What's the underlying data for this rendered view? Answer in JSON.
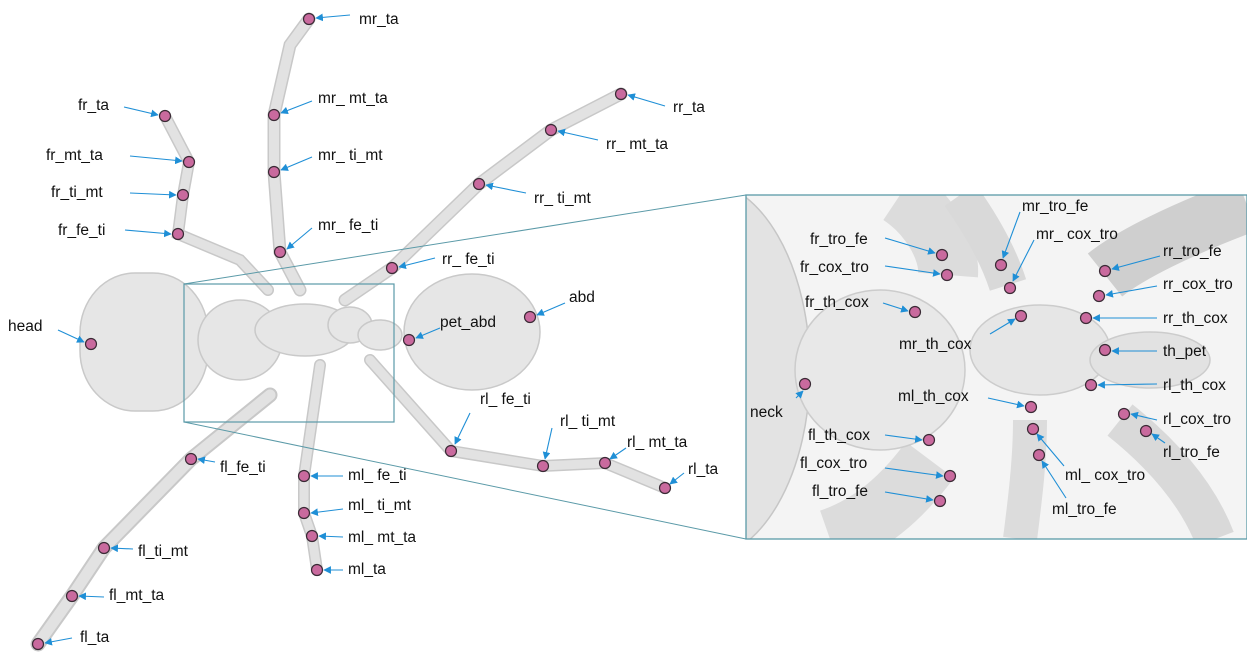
{
  "main_labels": [
    "mr_ta",
    "mr_ mt_ta",
    "mr_ ti_mt",
    "mr_ fe_ti",
    "fr_ta",
    "fr_mt_ta",
    "fr_ti_mt",
    "fr_fe_ti",
    "rr_ta",
    "rr_ mt_ta",
    "rr_ ti_mt",
    "rr_ fe_ti",
    "head",
    "pet_abd",
    "abd",
    "rl_ fe_ti",
    "rl_ ti_mt",
    "rl_ mt_ta",
    "rl_ta",
    "fl_fe_ti",
    "fl_ti_mt",
    "fl_mt_ta",
    "fl_ta",
    "ml_ fe_ti",
    "ml_ ti_mt",
    "ml_ mt_ta",
    "ml_ta"
  ],
  "inset_labels": [
    "fr_tro_fe",
    "fr_cox_tro",
    "fr_th_cox",
    "mr_tro_fe",
    "mr_ cox_tro",
    "mr_th_cox",
    "rr_tro_fe",
    "rr_cox_tro",
    "rr_th_cox",
    "th_pet",
    "rl_th_cox",
    "rl_cox_tro",
    "rl_tro_fe",
    "neck",
    "ml_th_cox",
    "fl_th_cox",
    "fl_cox_tro",
    "fl_tro_fe",
    "ml_ cox_tro",
    "ml_tro_fe"
  ],
  "colors": {
    "keypoint": "#c96a9e",
    "arrow": "#1f8fd6",
    "box": "#5b9aa8"
  }
}
